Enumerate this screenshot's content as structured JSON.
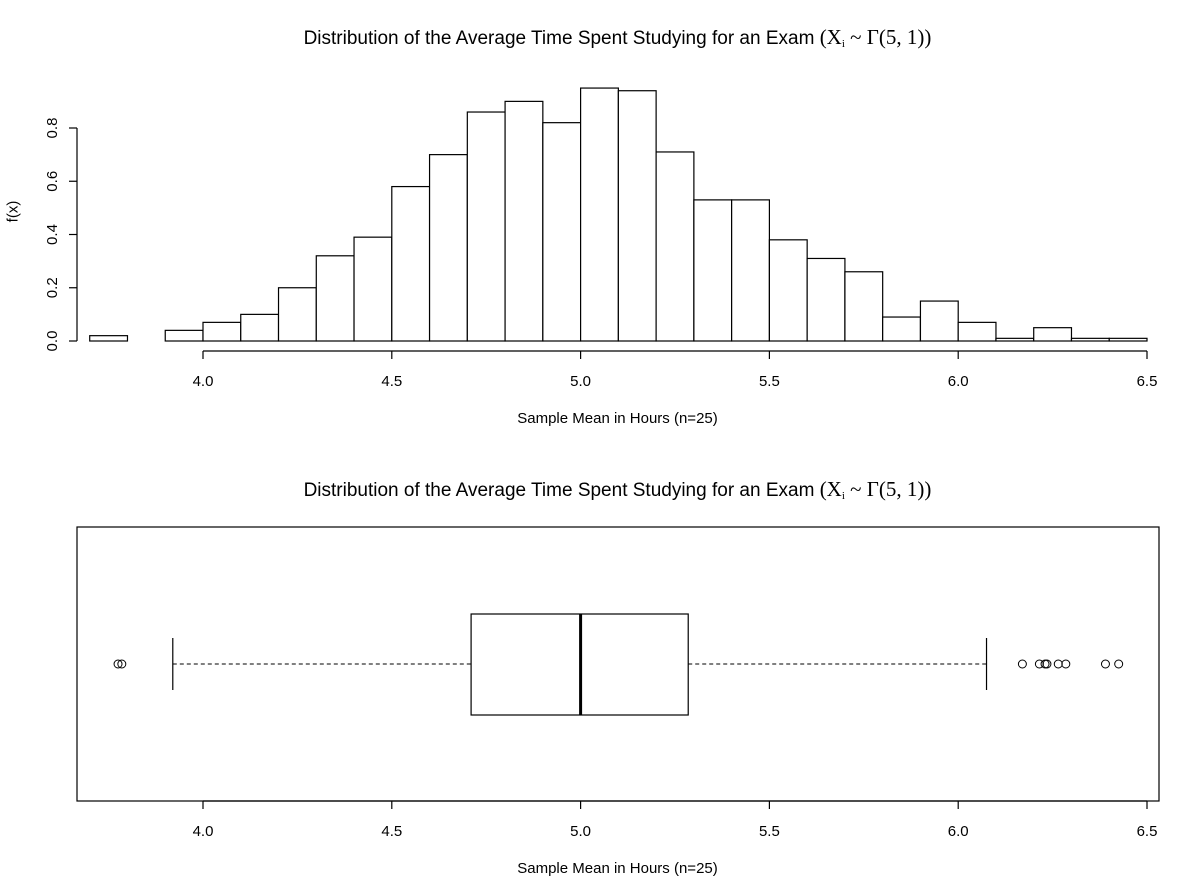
{
  "chart_data": [
    {
      "type": "bar",
      "subtype": "histogram",
      "title_prefix": "Distribution of the Average Time Spent Studying for an Exam ",
      "title_math": "(X",
      "title_math_sub": "i",
      "title_math_suffix": " ~ Γ(5, 1))",
      "xlabel": "Sample Mean in Hours (n=25)",
      "ylabel": "f(x)",
      "xlim": [
        3.7,
        6.5
      ],
      "ylim": [
        0,
        0.95
      ],
      "xticks": [
        "4.0",
        "4.5",
        "5.0",
        "5.5",
        "6.0",
        "6.5"
      ],
      "yticks": [
        "0.0",
        "0.2",
        "0.4",
        "0.6",
        "0.8"
      ],
      "bins": [
        {
          "start": 3.7,
          "end": 3.8,
          "density": 0.02
        },
        {
          "start": 3.8,
          "end": 3.9,
          "density": 0.0
        },
        {
          "start": 3.9,
          "end": 4.0,
          "density": 0.04
        },
        {
          "start": 4.0,
          "end": 4.1,
          "density": 0.07
        },
        {
          "start": 4.1,
          "end": 4.2,
          "density": 0.1
        },
        {
          "start": 4.2,
          "end": 4.3,
          "density": 0.2
        },
        {
          "start": 4.3,
          "end": 4.4,
          "density": 0.32
        },
        {
          "start": 4.4,
          "end": 4.5,
          "density": 0.39
        },
        {
          "start": 4.5,
          "end": 4.6,
          "density": 0.58
        },
        {
          "start": 4.6,
          "end": 4.7,
          "density": 0.7
        },
        {
          "start": 4.7,
          "end": 4.8,
          "density": 0.86
        },
        {
          "start": 4.8,
          "end": 4.9,
          "density": 0.9
        },
        {
          "start": 4.9,
          "end": 5.0,
          "density": 0.82
        },
        {
          "start": 5.0,
          "end": 5.1,
          "density": 0.95
        },
        {
          "start": 5.1,
          "end": 5.2,
          "density": 0.94
        },
        {
          "start": 5.2,
          "end": 5.3,
          "density": 0.71
        },
        {
          "start": 5.3,
          "end": 5.4,
          "density": 0.53
        },
        {
          "start": 5.4,
          "end": 5.5,
          "density": 0.53
        },
        {
          "start": 5.5,
          "end": 5.6,
          "density": 0.38
        },
        {
          "start": 5.6,
          "end": 5.7,
          "density": 0.31
        },
        {
          "start": 5.7,
          "end": 5.8,
          "density": 0.26
        },
        {
          "start": 5.8,
          "end": 5.9,
          "density": 0.09
        },
        {
          "start": 5.9,
          "end": 6.0,
          "density": 0.15
        },
        {
          "start": 6.0,
          "end": 6.1,
          "density": 0.07
        },
        {
          "start": 6.1,
          "end": 6.2,
          "density": 0.01
        },
        {
          "start": 6.2,
          "end": 6.3,
          "density": 0.05
        },
        {
          "start": 6.3,
          "end": 6.4,
          "density": 0.01
        },
        {
          "start": 6.4,
          "end": 6.5,
          "density": 0.01
        }
      ],
      "bar_fill": "#ffffff",
      "bar_stroke": "#000000"
    },
    {
      "type": "boxplot",
      "orientation": "horizontal",
      "title_prefix": "Distribution of the Average Time Spent Studying for an Exam ",
      "title_math": "(X",
      "title_math_sub": "i",
      "title_math_suffix": " ~ Γ(5, 1))",
      "xlabel": "Sample Mean in Hours (n=25)",
      "xlim": [
        3.67,
        6.53
      ],
      "xticks": [
        "4.0",
        "4.5",
        "5.0",
        "5.5",
        "6.0",
        "6.5"
      ],
      "whisker_low": 3.92,
      "q1": 4.71,
      "median": 5.0,
      "q3": 5.285,
      "whisker_high": 6.075,
      "outliers": [
        3.775,
        3.785,
        6.17,
        6.215,
        6.23,
        6.235,
        6.265,
        6.285,
        6.39,
        6.425
      ]
    }
  ]
}
